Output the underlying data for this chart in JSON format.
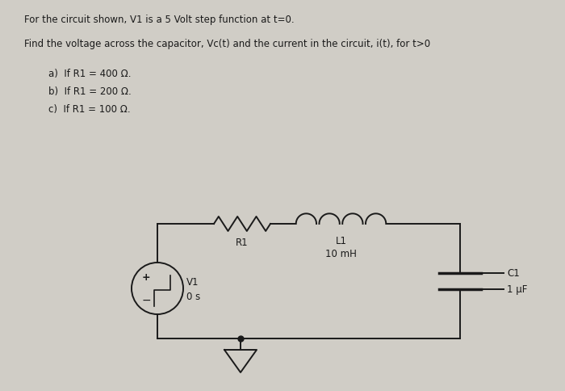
{
  "bg_color": "#d0cdc6",
  "line_color": "#1a1a1a",
  "title_line1": "For the circuit shown, V1 is a 5 Volt step function at t=0.",
  "title_line2": "Find the voltage across the capacitor, Vc(t) and the current in the circuit, i(t), for t>0",
  "items": [
    "a)  If R1 = 400 Ω.",
    "b)  If R1 = 200 Ω.",
    "c)  If R1 = 100 Ω."
  ],
  "component_labels": {
    "R1": "R1",
    "L1": "L1",
    "L1_val": "10 mH",
    "C1": "C1",
    "C1_val": "1 μF",
    "V1": "V1",
    "V1_val": "0 s"
  },
  "figsize": [
    7.0,
    4.85
  ],
  "dpi": 100
}
